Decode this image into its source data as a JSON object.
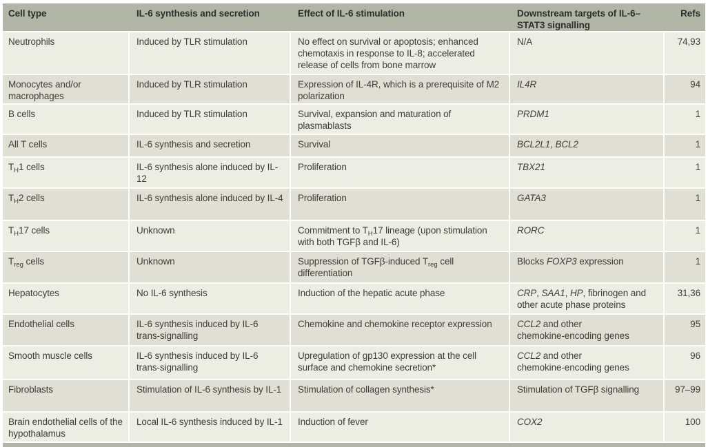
{
  "colors": {
    "header_bg": "#b2b6a6",
    "row_light": "#ecede3",
    "row_dark": "#dfe0d3",
    "text": "#3d3d3b",
    "header_text": "#2e2e2c",
    "page_bg": "#ffffff"
  },
  "table": {
    "columns": [
      {
        "label": "Cell type"
      },
      {
        "label": "IL-6 synthesis and secretion"
      },
      {
        "label": "Effect of IL-6 stimulation"
      },
      {
        "label": "Downstream targets of IL-6–STAT3 signalling"
      },
      {
        "label": "Refs"
      }
    ],
    "rows": [
      {
        "cell_type": "Neutrophils",
        "synthesis": "Induced by TLR stimulation",
        "effect": "No effect on survival or apoptosis; enhanced chemotaxis in response to IL-8; accelerated release of cells from bone marrow",
        "targets": "N/A",
        "refs": "74,93"
      },
      {
        "cell_type": "Monocytes and/or macrophages",
        "synthesis": "Induced by TLR stimulation",
        "effect": "Expression of IL-4R, which is a prerequisite of M2 polarization",
        "targets": "[[i]]IL4R[[/i]]",
        "refs": "94"
      },
      {
        "cell_type": "B cells",
        "synthesis": "Induced by TLR stimulation",
        "effect": "Survival, expansion and maturation of plasmablasts",
        "targets": "[[i]]PRDM1[[/i]]",
        "refs": "1"
      },
      {
        "cell_type": "All T cells",
        "synthesis": "IL-6 synthesis and secretion",
        "effect": "Survival",
        "targets": "[[i]]BCL2L1[[/i]], [[i]]BCL2[[/i]]",
        "refs": "1"
      },
      {
        "cell_type": "T[[sub]]H[[/sub]]1 cells",
        "synthesis": "IL-6 synthesis alone induced by IL-12",
        "effect": "Proliferation",
        "targets": "[[i]]TBX21[[/i]]",
        "refs": "1"
      },
      {
        "cell_type": "T[[sub]]H[[/sub]]2 cells",
        "synthesis": "IL-6 synthesis alone induced by IL-4",
        "effect": "Proliferation",
        "targets": "[[i]]GATA3[[/i]]",
        "refs": "1"
      },
      {
        "cell_type": "T[[sub]]H[[/sub]]17 cells",
        "synthesis": "Unknown",
        "effect": "Commitment to T[[sub]]H[[/sub]]17 lineage (upon stimulation with both TGFβ and IL-6)",
        "targets": "[[i]]RORC[[/i]]",
        "refs": "1"
      },
      {
        "cell_type": "T[[sub]]reg[[/sub]] cells",
        "synthesis": "Unknown",
        "effect": "Suppression of TGFβ-induced T[[sub]]reg[[/sub]] cell differentiation",
        "targets": "Blocks [[i]]FOXP3[[/i]] expression",
        "refs": "1"
      },
      {
        "cell_type": "Hepatocytes",
        "synthesis": "No IL-6 synthesis",
        "effect": "Induction of the hepatic acute phase",
        "targets": "[[i]]CRP[[/i]], [[i]]SAA1[[/i]], [[i]]HP[[/i]], fibrinogen and other acute phase proteins",
        "refs": "31,36"
      },
      {
        "cell_type": "Endothelial cells",
        "synthesis": "IL-6 synthesis induced by IL-6 [[nb]]trans-signalling[[/nb]]",
        "effect": "Chemokine and chemokine receptor expression",
        "targets": "[[i]]CCL2[[/i]] and other [[nb]]chemokine-encoding[[/nb]] genes",
        "refs": "95"
      },
      {
        "cell_type": "Smooth muscle cells",
        "synthesis": "IL-6 synthesis induced by IL-6 [[nb]]trans-signalling[[/nb]]",
        "effect": "Upregulation of gp130 expression at the cell surface and chemokine secretion*",
        "targets": "[[i]]CCL2[[/i]] and other [[nb]]chemokine-encoding[[/nb]] genes",
        "refs": "96"
      },
      {
        "cell_type": "Fibroblasts",
        "synthesis": "Stimulation of IL-6 synthesis by IL-1",
        "effect": "Stimulation of collagen synthesis*",
        "targets": "Stimulation of TGFβ signalling",
        "refs": "97–99"
      },
      {
        "cell_type": "Brain endothelial cells of the hypothalamus",
        "synthesis": "Local IL-6 synthesis induced by IL-1",
        "effect": "Induction of fever",
        "targets": "[[i]]COX2[[/i]]",
        "refs": "100"
      }
    ]
  }
}
